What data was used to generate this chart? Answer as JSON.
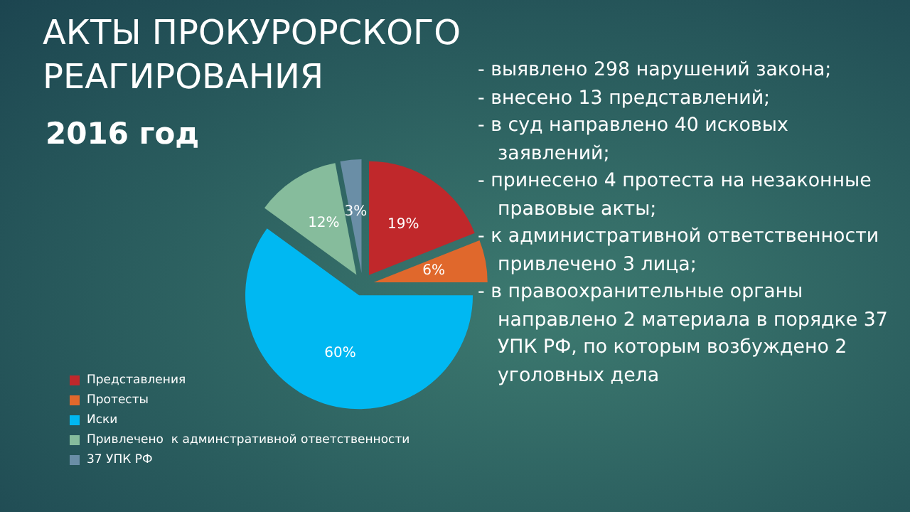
{
  "chart_data": {
    "type": "pie",
    "title": "АКТЫ ПРОКУРОРСКОГО РЕАГИРОВАНИЯ",
    "subtitle": "2016 год",
    "categories": [
      "Представления",
      "Протесты",
      "Иски",
      "Привлечено  к админстративной ответственности",
      "37 УПК РФ"
    ],
    "values": [
      19,
      6,
      60,
      12,
      3
    ],
    "value_labels": [
      "19%",
      "6%",
      "60%",
      "12%",
      "3%"
    ],
    "colors": [
      "#c0282b",
      "#e0682c",
      "#00b8f2",
      "#86bc9c",
      "#6a8ea6"
    ],
    "legend": "bottom left",
    "annotations": [
      "- выявлено 298 нарушений закона;",
      "- внесено 13 представлений;",
      "- в суд направлено 40 исковых заявлений;",
      "- принесено 4 протеста на незаконные правовые акты;",
      "- к административной ответственности привлечено 3 лица;",
      "- в правоохранительные органы направлено 2 материала в порядке 37 УПК РФ, по которым возбуждено 2 уголовных дела"
    ]
  }
}
